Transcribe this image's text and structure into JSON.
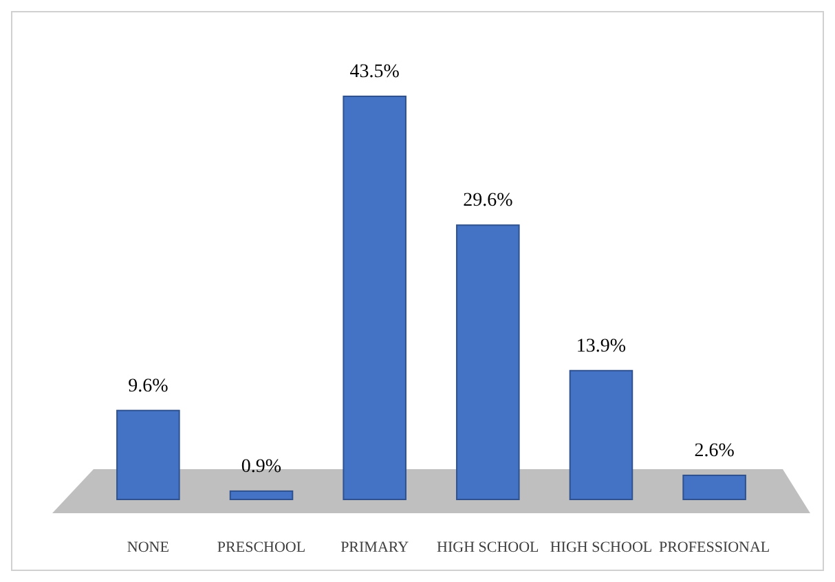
{
  "chart_data": {
    "type": "bar",
    "categories": [
      "NONE",
      "PRESCHOOL",
      "PRIMARY",
      "HIGH SCHOOL",
      "HIGH SCHOOL",
      "PROFESSIONAL"
    ],
    "values": [
      9.6,
      0.9,
      43.5,
      29.6,
      13.9,
      2.6
    ],
    "value_labels": [
      "9.6%",
      "0.9%",
      "43.5%",
      "29.6%",
      "13.9%",
      "2.6%"
    ],
    "color": "#4472c4"
  }
}
